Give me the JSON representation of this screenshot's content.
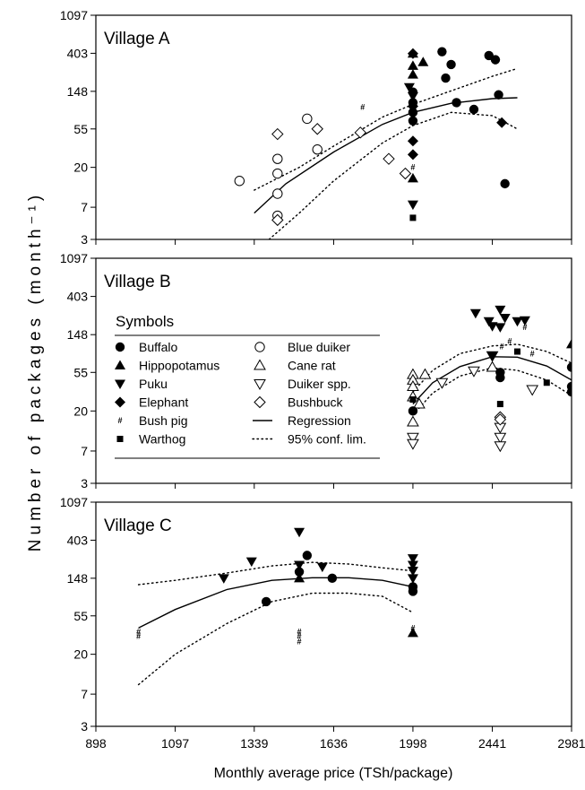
{
  "chart_data": {
    "type": "scatter",
    "ylabel": "Number of packages (month⁻¹)",
    "xlabel": "Monthly average price (TSh/package)",
    "x_ticks": [
      "898",
      "1097",
      "1339",
      "1636",
      "1998",
      "2441",
      "2981"
    ],
    "y_ticks": [
      "3",
      "7",
      "20",
      "55",
      "148",
      "403",
      "1097"
    ],
    "x_scale": "log",
    "y_scale": "log",
    "xlim": [
      898,
      2981
    ],
    "ylim": [
      3,
      1097
    ],
    "legend": {
      "title": "Symbols",
      "placement": "Village B panel, left",
      "entries": [
        {
          "label": "Buffalo",
          "symbol": "circle-filled"
        },
        {
          "label": "Blue duiker",
          "symbol": "circle-open"
        },
        {
          "label": "Hippopotamus",
          "symbol": "triangle-up-filled"
        },
        {
          "label": "Cane rat",
          "symbol": "triangle-up-open"
        },
        {
          "label": "Puku",
          "symbol": "triangle-down-filled"
        },
        {
          "label": "Duiker spp.",
          "symbol": "triangle-down-open"
        },
        {
          "label": "Elephant",
          "symbol": "diamond-filled"
        },
        {
          "label": "Bushbuck",
          "symbol": "diamond-open"
        },
        {
          "label": "Bush pig",
          "symbol": "hash"
        },
        {
          "label": "Regression",
          "symbol": "solid-line"
        },
        {
          "label": "Warthog",
          "symbol": "square-filled"
        },
        {
          "label": "95% conf. lim.",
          "symbol": "dotted-line"
        }
      ]
    },
    "panels": [
      {
        "title": "Village A",
        "regression": [
          [
            1339,
            6
          ],
          [
            1450,
            13
          ],
          [
            1636,
            30
          ],
          [
            1850,
            62
          ],
          [
            1998,
            85
          ],
          [
            2200,
            108
          ],
          [
            2441,
            122
          ],
          [
            2600,
            125
          ]
        ],
        "ci_upper": [
          [
            1339,
            11
          ],
          [
            1500,
            20
          ],
          [
            1636,
            35
          ],
          [
            1850,
            75
          ],
          [
            1998,
            105
          ],
          [
            2200,
            150
          ],
          [
            2441,
            220
          ],
          [
            2600,
            270
          ]
        ],
        "ci_lower": [
          [
            1390,
            3
          ],
          [
            1500,
            6
          ],
          [
            1636,
            14
          ],
          [
            1850,
            38
          ],
          [
            1998,
            60
          ],
          [
            2200,
            85
          ],
          [
            2441,
            78
          ],
          [
            2600,
            55
          ]
        ],
        "points": [
          {
            "species": "Blue duiker",
            "x": 1290,
            "y": 14
          },
          {
            "species": "Blue duiker",
            "x": 1420,
            "y": 17
          },
          {
            "species": "Blue duiker",
            "x": 1420,
            "y": 25
          },
          {
            "species": "Blue duiker",
            "x": 1420,
            "y": 10
          },
          {
            "species": "Blue duiker",
            "x": 1420,
            "y": 5.6
          },
          {
            "species": "Blue duiker",
            "x": 1530,
            "y": 72
          },
          {
            "species": "Blue duiker",
            "x": 1570,
            "y": 32
          },
          {
            "species": "Bushbuck",
            "x": 1420,
            "y": 48
          },
          {
            "species": "Bushbuck",
            "x": 1420,
            "y": 5
          },
          {
            "species": "Bushbuck",
            "x": 1570,
            "y": 55
          },
          {
            "species": "Bushbuck",
            "x": 1750,
            "y": 50
          },
          {
            "species": "Bushbuck",
            "x": 1880,
            "y": 25
          },
          {
            "species": "Bushbuck",
            "x": 1960,
            "y": 17
          },
          {
            "species": "Bush pig",
            "x": 1760,
            "y": 98
          },
          {
            "species": "Bush pig",
            "x": 1998,
            "y": 20
          },
          {
            "species": "Hippopotamus",
            "x": 1998,
            "y": 400
          },
          {
            "species": "Hippopotamus",
            "x": 1998,
            "y": 290
          },
          {
            "species": "Hippopotamus",
            "x": 1998,
            "y": 230
          },
          {
            "species": "Hippopotamus",
            "x": 2050,
            "y": 320
          },
          {
            "species": "Hippopotamus",
            "x": 1998,
            "y": 15
          },
          {
            "species": "Puku",
            "x": 1980,
            "y": 165
          },
          {
            "species": "Puku",
            "x": 1998,
            "y": 130
          },
          {
            "species": "Puku",
            "x": 1998,
            "y": 7.5
          },
          {
            "species": "Elephant",
            "x": 1998,
            "y": 400
          },
          {
            "species": "Elephant",
            "x": 1998,
            "y": 100
          },
          {
            "species": "Elephant",
            "x": 1998,
            "y": 40
          },
          {
            "species": "Elephant",
            "x": 1998,
            "y": 28
          },
          {
            "species": "Elephant",
            "x": 2500,
            "y": 65
          },
          {
            "species": "Buffalo",
            "x": 1998,
            "y": 145
          },
          {
            "species": "Buffalo",
            "x": 1998,
            "y": 110
          },
          {
            "species": "Buffalo",
            "x": 1998,
            "y": 85
          },
          {
            "species": "Buffalo",
            "x": 1998,
            "y": 68
          },
          {
            "species": "Buffalo",
            "x": 2150,
            "y": 420
          },
          {
            "species": "Buffalo",
            "x": 2170,
            "y": 210
          },
          {
            "species": "Buffalo",
            "x": 2200,
            "y": 300
          },
          {
            "species": "Buffalo",
            "x": 2230,
            "y": 110
          },
          {
            "species": "Buffalo",
            "x": 2330,
            "y": 92
          },
          {
            "species": "Buffalo",
            "x": 2420,
            "y": 380
          },
          {
            "species": "Buffalo",
            "x": 2460,
            "y": 340
          },
          {
            "species": "Buffalo",
            "x": 2480,
            "y": 135
          },
          {
            "species": "Buffalo",
            "x": 2520,
            "y": 13
          },
          {
            "species": "Warthog",
            "x": 1998,
            "y": 5.3
          }
        ]
      },
      {
        "title": "Village B",
        "regression": [
          [
            1998,
            24
          ],
          [
            2100,
            42
          ],
          [
            2250,
            64
          ],
          [
            2441,
            83
          ],
          [
            2600,
            82
          ],
          [
            2800,
            65
          ],
          [
            2981,
            45
          ]
        ],
        "ci_upper": [
          [
            1998,
            33
          ],
          [
            2100,
            58
          ],
          [
            2250,
            90
          ],
          [
            2441,
            110
          ],
          [
            2600,
            115
          ],
          [
            2800,
            95
          ],
          [
            2981,
            70
          ]
        ],
        "ci_lower": [
          [
            1998,
            18
          ],
          [
            2100,
            32
          ],
          [
            2250,
            50
          ],
          [
            2441,
            62
          ],
          [
            2600,
            58
          ],
          [
            2800,
            45
          ],
          [
            2981,
            30
          ]
        ],
        "points": [
          {
            "species": "Cane rat",
            "x": 1998,
            "y": 52
          },
          {
            "species": "Cane rat",
            "x": 1998,
            "y": 45
          },
          {
            "species": "Cane rat",
            "x": 1998,
            "y": 38
          },
          {
            "species": "Cane rat",
            "x": 1998,
            "y": 29
          },
          {
            "species": "Cane rat",
            "x": 2030,
            "y": 24
          },
          {
            "species": "Cane rat",
            "x": 1998,
            "y": 15
          },
          {
            "species": "Cane rat",
            "x": 2060,
            "y": 52
          },
          {
            "species": "Cane rat",
            "x": 2441,
            "y": 63
          },
          {
            "species": "Duiker spp.",
            "x": 1998,
            "y": 10
          },
          {
            "species": "Duiker spp.",
            "x": 1998,
            "y": 8.5
          },
          {
            "species": "Duiker spp.",
            "x": 2150,
            "y": 42
          },
          {
            "species": "Duiker spp.",
            "x": 2330,
            "y": 57
          },
          {
            "species": "Duiker spp.",
            "x": 2441,
            "y": 85
          },
          {
            "species": "Duiker spp.",
            "x": 2490,
            "y": 13
          },
          {
            "species": "Duiker spp.",
            "x": 2490,
            "y": 10
          },
          {
            "species": "Duiker spp.",
            "x": 2490,
            "y": 8
          },
          {
            "species": "Duiker spp.",
            "x": 2700,
            "y": 35
          },
          {
            "species": "Bushbuck",
            "x": 2490,
            "y": 17
          },
          {
            "species": "Bushbuck",
            "x": 2490,
            "y": 16
          },
          {
            "species": "Buffalo",
            "x": 1998,
            "y": 20
          },
          {
            "species": "Buffalo",
            "x": 2490,
            "y": 55
          },
          {
            "species": "Buffalo",
            "x": 2490,
            "y": 48
          },
          {
            "species": "Buffalo",
            "x": 2981,
            "y": 63
          },
          {
            "species": "Buffalo",
            "x": 2981,
            "y": 38
          },
          {
            "species": "Buffalo",
            "x": 2981,
            "y": 33
          },
          {
            "species": "Hippopotamus",
            "x": 2981,
            "y": 115
          },
          {
            "species": "Puku",
            "x": 2340,
            "y": 260
          },
          {
            "species": "Puku",
            "x": 2420,
            "y": 210
          },
          {
            "species": "Puku",
            "x": 2441,
            "y": 185
          },
          {
            "species": "Puku",
            "x": 2490,
            "y": 180
          },
          {
            "species": "Puku",
            "x": 2490,
            "y": 285
          },
          {
            "species": "Puku",
            "x": 2520,
            "y": 230
          },
          {
            "species": "Puku",
            "x": 2600,
            "y": 210
          },
          {
            "species": "Puku",
            "x": 2650,
            "y": 215
          },
          {
            "species": "Puku",
            "x": 2441,
            "y": 85
          },
          {
            "species": "Bush pig",
            "x": 2500,
            "y": 108
          },
          {
            "species": "Bush pig",
            "x": 2550,
            "y": 125
          },
          {
            "species": "Bush pig",
            "x": 2650,
            "y": 180
          },
          {
            "species": "Bush pig",
            "x": 2700,
            "y": 90
          },
          {
            "species": "Warthog",
            "x": 2600,
            "y": 95
          },
          {
            "species": "Warthog",
            "x": 2490,
            "y": 24
          },
          {
            "species": "Warthog",
            "x": 2800,
            "y": 42
          },
          {
            "species": "Warthog",
            "x": 1998,
            "y": 27
          }
        ]
      },
      {
        "title": "Village C",
        "regression": [
          [
            1000,
            40
          ],
          [
            1097,
            65
          ],
          [
            1250,
            110
          ],
          [
            1400,
            140
          ],
          [
            1550,
            150
          ],
          [
            1700,
            150
          ],
          [
            1850,
            140
          ],
          [
            1998,
            118
          ]
        ],
        "ci_upper": [
          [
            1000,
            125
          ],
          [
            1097,
            140
          ],
          [
            1250,
            170
          ],
          [
            1400,
            205
          ],
          [
            1550,
            225
          ],
          [
            1700,
            215
          ],
          [
            1850,
            195
          ],
          [
            1998,
            180
          ]
        ],
        "ci_lower": [
          [
            1000,
            9
          ],
          [
            1097,
            20
          ],
          [
            1250,
            45
          ],
          [
            1400,
            80
          ],
          [
            1550,
            100
          ],
          [
            1700,
            100
          ],
          [
            1850,
            92
          ],
          [
            1998,
            60
          ]
        ],
        "points": [
          {
            "species": "Bush pig",
            "x": 1000,
            "y": 36
          },
          {
            "species": "Bush pig",
            "x": 1000,
            "y": 32
          },
          {
            "species": "Bush pig",
            "x": 1500,
            "y": 36
          },
          {
            "species": "Bush pig",
            "x": 1500,
            "y": 32
          },
          {
            "species": "Bush pig",
            "x": 1500,
            "y": 28
          },
          {
            "species": "Bush pig",
            "x": 1998,
            "y": 40
          },
          {
            "species": "Bush pig",
            "x": 1998,
            "y": 35
          },
          {
            "species": "Puku",
            "x": 1240,
            "y": 148
          },
          {
            "species": "Puku",
            "x": 1330,
            "y": 230
          },
          {
            "species": "Puku",
            "x": 1500,
            "y": 500
          },
          {
            "species": "Puku",
            "x": 1500,
            "y": 210
          },
          {
            "species": "Puku",
            "x": 1590,
            "y": 200
          },
          {
            "species": "Puku",
            "x": 1998,
            "y": 250
          },
          {
            "species": "Puku",
            "x": 1998,
            "y": 210
          },
          {
            "species": "Puku",
            "x": 1998,
            "y": 180
          },
          {
            "species": "Puku",
            "x": 1998,
            "y": 148
          },
          {
            "species": "Hippopotamus",
            "x": 1500,
            "y": 148
          },
          {
            "species": "Hippopotamus",
            "x": 1998,
            "y": 35
          },
          {
            "species": "Buffalo",
            "x": 1380,
            "y": 80
          },
          {
            "species": "Buffalo",
            "x": 1500,
            "y": 175
          },
          {
            "species": "Buffalo",
            "x": 1530,
            "y": 270
          },
          {
            "species": "Buffalo",
            "x": 1630,
            "y": 148
          },
          {
            "species": "Buffalo",
            "x": 1998,
            "y": 118
          },
          {
            "species": "Buffalo",
            "x": 1998,
            "y": 105
          }
        ]
      }
    ]
  }
}
